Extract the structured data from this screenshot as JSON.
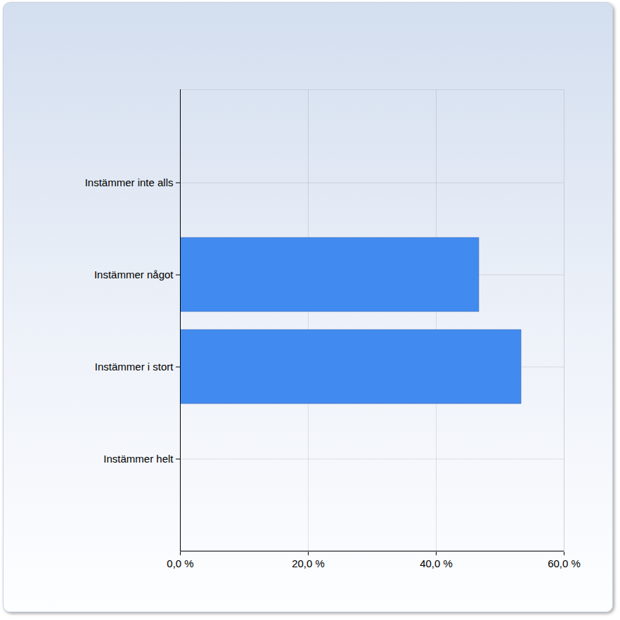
{
  "chart_data": {
    "type": "bar",
    "orientation": "horizontal",
    "categories": [
      "Instämmer inte alls",
      "Instämmer något",
      "Instämmer i stort",
      "Instämmer helt"
    ],
    "values": [
      0,
      46.7,
      53.3,
      0
    ],
    "color": "#418bf0",
    "xlim": [
      0,
      60
    ],
    "xticks": [
      {
        "value": 0,
        "label": "0,0 %"
      },
      {
        "value": 20,
        "label": "20,0 %"
      },
      {
        "value": 40,
        "label": "40,0 %"
      },
      {
        "value": 60,
        "label": "60,0 %"
      }
    ],
    "grid": true
  }
}
